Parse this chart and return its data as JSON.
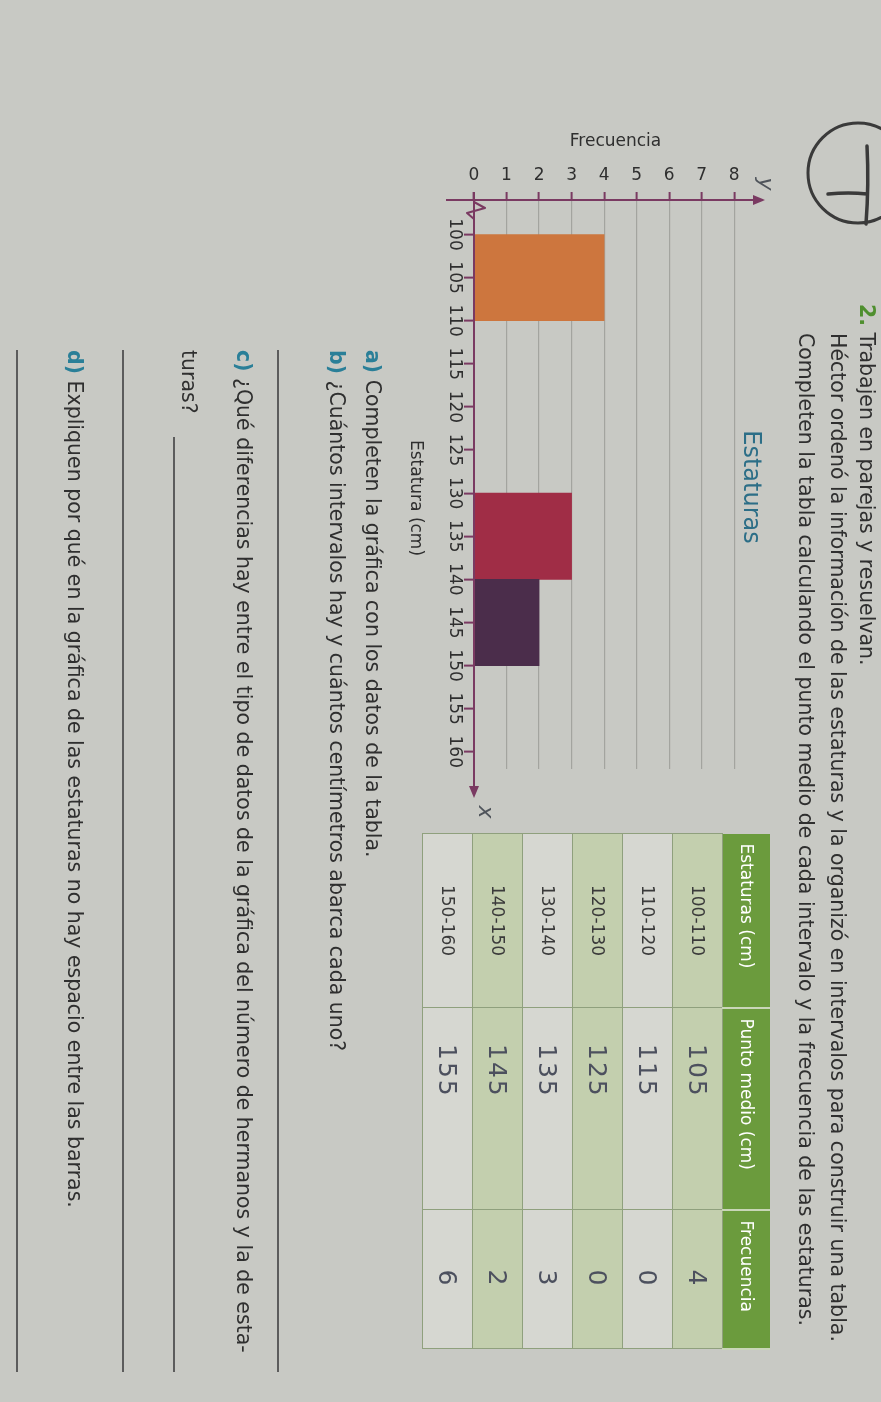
{
  "chart_data": [
    {
      "type": "histogram",
      "orientation": "horizontal",
      "title": "Estaturas",
      "xlabel": "Frecuencia",
      "ylabel": "Estatura (cm)",
      "bins": [
        100,
        110,
        120,
        130,
        140,
        150,
        160
      ],
      "values": [
        4,
        0,
        0,
        3,
        2,
        0
      ],
      "colors": [
        "#cd763e",
        null,
        null,
        "#a02d46",
        "#4b2d4b",
        null
      ],
      "xlim": [
        0,
        8.7
      ],
      "xticks": [
        0,
        1,
        2,
        3,
        4,
        5,
        6,
        7,
        8
      ],
      "ylim": [
        162,
        96
      ],
      "yticks": [
        100,
        105,
        110,
        115,
        120,
        125,
        130,
        135,
        140,
        145,
        150,
        155,
        160
      ],
      "grid": "x",
      "annotations": [
        "y",
        "x"
      ]
    },
    {
      "type": "other",
      "xlabel": "Estaturas (cm)",
      "categories": [
        "100-110",
        "110-120",
        "120-130",
        "130-140",
        "140-150",
        "150-160"
      ],
      "series": [
        {
          "name": "Punto medio (cm)",
          "colors": [
            "#c3cfae",
            "#d6d7d1",
            "#c3cfae",
            "#d6d7d1",
            "#c3cfae",
            "#d6d7d1"
          ],
          "values": [
            105,
            115,
            125,
            135,
            145,
            155
          ]
        },
        {
          "name": "Frecuencia",
          "colors": [
            "#c3cfae",
            "#d6d7d1",
            "#c3cfae",
            "#d6d7d1",
            "#c3cfae",
            "#d6d7d1"
          ],
          "values": [
            4,
            0,
            0,
            3,
            2,
            6
          ]
        }
      ],
      "data_labels": true
    },
    {
      "type": "other",
      "title": "2. Trabajen en parejas y resuelvan.",
      "annotations": [
        "Héctor ordenó la información de las estaturas y la organizó en intervalos para construir una tabla.",
        "Completen la tabla calculando el punto medio de cada intervalo y la frecuencia de las estaturas.",
        "a) Completen la gráfica con los datos de la tabla.",
        "b) ¿Cuántos intervalos hay y cuántos centímetros abarca cada uno?",
        "c) ¿Qué diferencias hay entre el tipo de datos de la gráfica del número de hermanos y la de esta-\nturas?",
        "d) Expliquen por qué en la gráfica de las estaturas no hay espacio entre las barras."
      ]
    }
  ]
}
